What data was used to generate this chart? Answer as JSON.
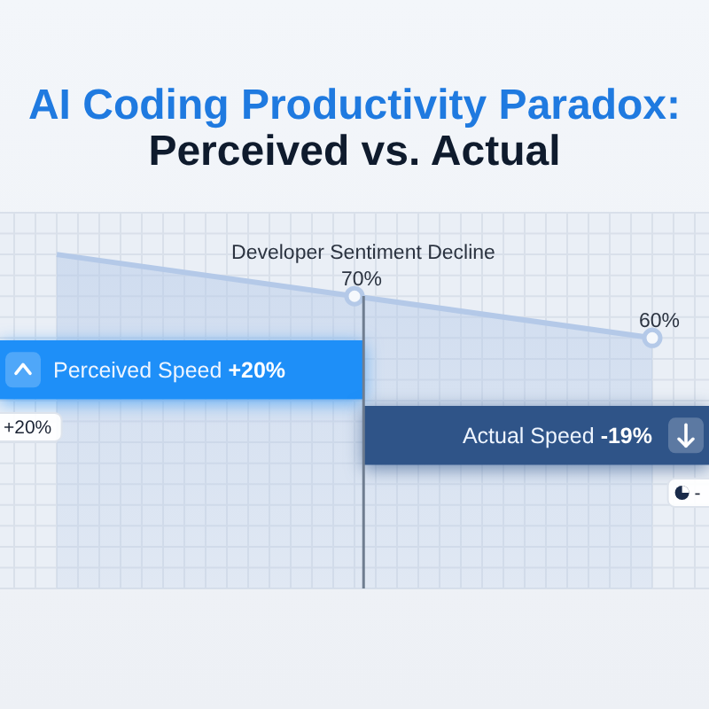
{
  "chart_data": [
    {
      "type": "area",
      "title": "AI Coding Productivity Paradox:",
      "subtitle": "Perceived vs. Actual",
      "categories": [
        null,
        null,
        null
      ],
      "series": [
        {
          "name": "Developer Sentiment Decline",
          "color": "#b4c9e8",
          "values": [
            80,
            70,
            60
          ],
          "value_labels": [
            null,
            "70%",
            "60%"
          ]
        }
      ],
      "ylim": [
        0,
        90
      ],
      "yticks": [
        {
          "value": 0,
          "label": null
        },
        {
          "value": 5,
          "label": null
        },
        {
          "value": 10,
          "label": null
        },
        {
          "value": 15,
          "label": null
        },
        {
          "value": 20,
          "label": null
        },
        {
          "value": 25,
          "label": null
        },
        {
          "value": 30,
          "label": null
        },
        {
          "value": 35,
          "label": null
        },
        {
          "value": 40,
          "label": null
        },
        {
          "value": 45,
          "label": null
        },
        {
          "value": 50,
          "label": null
        },
        {
          "value": 55,
          "label": null
        },
        {
          "value": 60,
          "label": null
        },
        {
          "value": 65,
          "label": null
        },
        {
          "value": 70,
          "label": null
        },
        {
          "value": 75,
          "label": null
        },
        {
          "value": 80,
          "label": null
        },
        {
          "value": 85,
          "label": null
        },
        {
          "value": 90,
          "label": null
        }
      ],
      "grid": true,
      "marker": "circle"
    },
    {
      "type": "other",
      "categories": [
        "Perceived Speed",
        "Actual Speed"
      ],
      "values": [
        20,
        -19
      ],
      "colors": [
        "#1e8ff8",
        "#2f5488"
      ],
      "value_labels": [
        "+20%",
        "-19%"
      ],
      "annotations": [
        "+20%",
        "-"
      ]
    }
  ]
}
